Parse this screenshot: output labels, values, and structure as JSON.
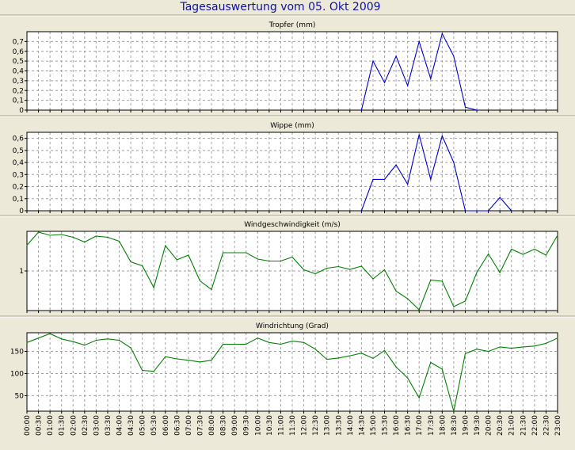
{
  "title": "Tagesauswertung vom 05. Okt 2009",
  "chart_data": [
    {
      "type": "line",
      "title": "Tropfer (mm)",
      "color": "#0000cc",
      "ylim": [
        0,
        0.8
      ],
      "yticks": [
        0,
        0.1,
        0.2,
        0.3,
        0.4,
        0.5,
        0.6,
        0.7
      ],
      "ytick_labels": [
        "0",
        "0,1",
        "0,2",
        "0,3",
        "0,4",
        "0,5",
        "0,6",
        "0,7"
      ],
      "x": [
        "14:30",
        "15:00",
        "15:30",
        "16:00",
        "16:30",
        "17:00",
        "17:30",
        "18:00",
        "18:30",
        "19:00",
        "19:30"
      ],
      "values": [
        0,
        0.5,
        0.28,
        0.55,
        0.25,
        0.7,
        0.32,
        0.78,
        0.55,
        0.03,
        0
      ]
    },
    {
      "type": "line",
      "title": "Wippe (mm)",
      "color": "#0000cc",
      "ylim": [
        0,
        0.65
      ],
      "yticks": [
        0,
        0.1,
        0.2,
        0.3,
        0.4,
        0.5,
        0.6
      ],
      "ytick_labels": [
        "0",
        "0,1",
        "0,2",
        "0,3",
        "0,4",
        "0,5",
        "0,6"
      ],
      "x": [
        "14:30",
        "15:00",
        "15:30",
        "16:00",
        "16:30",
        "17:00",
        "17:30",
        "18:00",
        "18:30",
        "19:00",
        "19:30",
        "20:00",
        "20:30",
        "21:00"
      ],
      "values": [
        0,
        0.26,
        0.26,
        0.38,
        0.22,
        0.63,
        0.26,
        0.62,
        0.4,
        0,
        0,
        0,
        0.11,
        0
      ]
    },
    {
      "type": "line",
      "title": "Windgeschwindigkeit (m/s)",
      "color": "#008000",
      "ylim": [
        0,
        2
      ],
      "yticks": [
        1
      ],
      "ytick_labels": [
        "1"
      ],
      "x": [
        "00:00",
        "00:30",
        "01:00",
        "01:30",
        "02:00",
        "02:30",
        "03:00",
        "03:30",
        "04:00",
        "04:30",
        "05:00",
        "05:30",
        "06:00",
        "06:30",
        "07:00",
        "07:30",
        "08:00",
        "08:30",
        "09:00",
        "09:30",
        "10:00",
        "10:30",
        "11:00",
        "11:30",
        "12:00",
        "12:30",
        "13:00",
        "13:30",
        "14:00",
        "14:30",
        "15:00",
        "15:30",
        "16:00",
        "16:30",
        "17:00",
        "17:30",
        "18:00",
        "18:30",
        "19:00",
        "19:30",
        "20:00",
        "20:30",
        "21:00",
        "21:30",
        "22:00",
        "22:30",
        "23:00"
      ],
      "values": [
        1.65,
        1.98,
        1.9,
        1.92,
        1.85,
        1.73,
        1.88,
        1.85,
        1.75,
        1.23,
        1.13,
        0.58,
        1.64,
        1.28,
        1.4,
        0.75,
        0.53,
        1.46,
        1.46,
        1.46,
        1.3,
        1.25,
        1.25,
        1.35,
        1.03,
        0.93,
        1.07,
        1.11,
        1.04,
        1.12,
        0.8,
        1.03,
        0.49,
        0.3,
        0.02,
        0.77,
        0.74,
        0.1,
        0.24,
        0.96,
        1.43,
        0.96,
        1.55,
        1.42,
        1.55,
        1.4,
        1.9
      ]
    },
    {
      "type": "line",
      "title": "Windrichtung (Grad)",
      "color": "#008000",
      "ylim": [
        15,
        192
      ],
      "yticks": [
        50,
        100,
        150
      ],
      "ytick_labels": [
        "50",
        "100",
        "150"
      ],
      "x": [
        "00:00",
        "00:30",
        "01:00",
        "01:30",
        "02:00",
        "02:30",
        "03:00",
        "03:30",
        "04:00",
        "04:30",
        "05:00",
        "05:30",
        "06:00",
        "06:30",
        "07:00",
        "07:30",
        "08:00",
        "08:30",
        "09:00",
        "09:30",
        "10:00",
        "10:30",
        "11:00",
        "11:30",
        "12:00",
        "12:30",
        "13:00",
        "13:30",
        "14:00",
        "14:30",
        "15:00",
        "15:30",
        "16:00",
        "16:30",
        "17:00",
        "17:30",
        "18:00",
        "18:30",
        "19:00",
        "19:30",
        "20:00",
        "20:30",
        "21:00",
        "21:30",
        "22:00",
        "22:30",
        "23:00"
      ],
      "values": [
        170,
        180,
        190,
        178,
        172,
        164,
        175,
        178,
        175,
        158,
        107,
        105,
        138,
        133,
        130,
        126,
        130,
        166,
        166,
        166,
        180,
        170,
        166,
        173,
        170,
        155,
        132,
        135,
        140,
        146,
        134,
        152,
        115,
        90,
        45,
        125,
        110,
        15,
        145,
        155,
        150,
        160,
        157,
        160,
        162,
        168,
        180
      ]
    }
  ],
  "x_axis": {
    "ticks": [
      "00:00",
      "00:30",
      "01:00",
      "01:30",
      "02:00",
      "02:30",
      "03:00",
      "03:30",
      "04:00",
      "04:30",
      "05:00",
      "05:30",
      "06:00",
      "06:30",
      "07:00",
      "07:30",
      "08:00",
      "08:30",
      "09:00",
      "09:30",
      "10:00",
      "10:30",
      "11:00",
      "11:30",
      "12:00",
      "12:30",
      "13:00",
      "13:30",
      "14:00",
      "14:30",
      "15:00",
      "15:30",
      "16:00",
      "16:30",
      "17:00",
      "17:30",
      "18:00",
      "18:30",
      "19:00",
      "19:30",
      "20:00",
      "20:30",
      "21:00",
      "21:30",
      "22:00",
      "22:30",
      "23:00"
    ],
    "range": [
      "00:00",
      "23:00"
    ]
  }
}
